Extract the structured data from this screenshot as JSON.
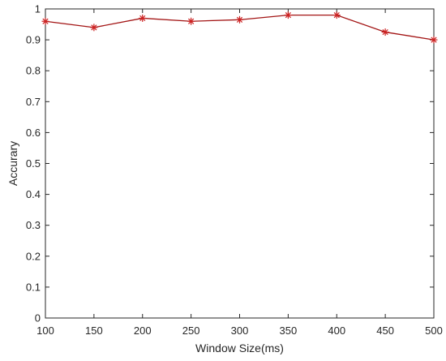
{
  "chart_data": {
    "type": "line",
    "title": "",
    "xlabel": "Window Size(ms)",
    "ylabel": "Accurary",
    "xlim": [
      100,
      500
    ],
    "ylim": [
      0,
      1
    ],
    "grid": false,
    "legend": "none",
    "x_ticks": [
      "100",
      "150",
      "200",
      "250",
      "300",
      "350",
      "400",
      "450",
      "500"
    ],
    "y_ticks": [
      "0",
      "0.1",
      "0.2",
      "0.3",
      "0.4",
      "0.5",
      "0.6",
      "0.7",
      "0.8",
      "0.9",
      "1"
    ],
    "series": [
      {
        "x": [
          100,
          150,
          200,
          250,
          300,
          350,
          400,
          450,
          500
        ],
        "values": [
          0.96,
          0.94,
          0.97,
          0.96,
          0.965,
          0.98,
          0.98,
          0.925,
          0.9
        ],
        "line_color": "#a31515",
        "marker": "asterisk",
        "marker_color": "#cc2222"
      }
    ]
  }
}
